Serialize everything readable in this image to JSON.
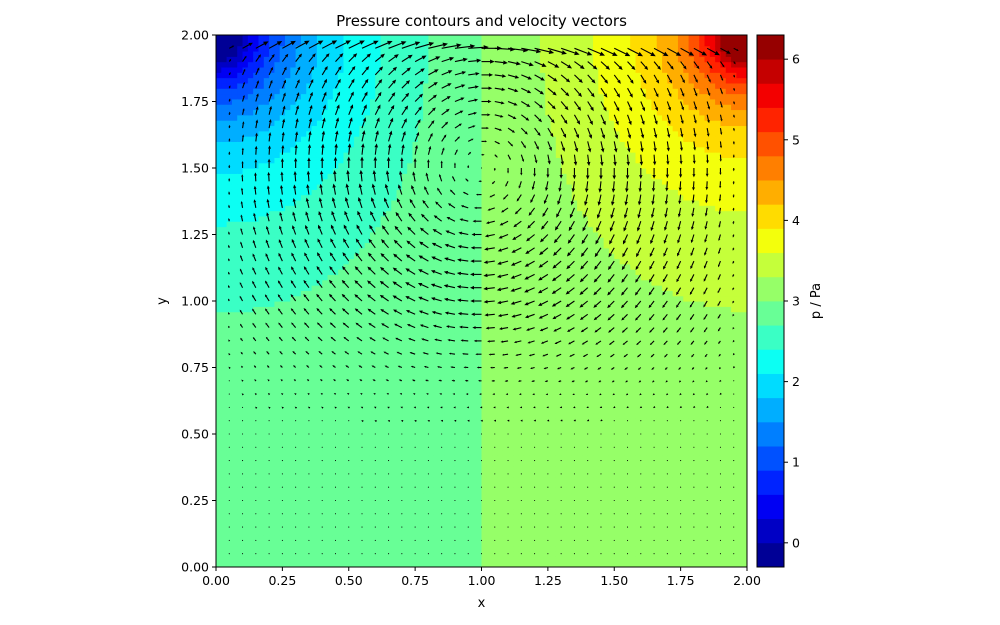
{
  "chart_data": {
    "type": "heatmap",
    "subtype": "filled contour with quiver (velocity vectors)",
    "title": "Pressure contours and velocity vectors",
    "xlabel": "x",
    "ylabel": "y",
    "xlim": [
      0.0,
      2.0
    ],
    "ylim": [
      0.0,
      2.0
    ],
    "x_ticks": [
      "0.00",
      "0.25",
      "0.50",
      "0.75",
      "1.00",
      "1.25",
      "1.50",
      "1.75",
      "2.00"
    ],
    "y_ticks": [
      "0.00",
      "0.25",
      "0.50",
      "0.75",
      "1.00",
      "1.25",
      "1.50",
      "1.75",
      "2.00"
    ],
    "grid": false,
    "colormap": "jet",
    "colorbar": {
      "label": "p / Pa",
      "range": [
        -0.3,
        6.3
      ],
      "ticks": [
        "0",
        "1",
        "2",
        "3",
        "4",
        "5",
        "6"
      ],
      "levels": 22,
      "placement": "right"
    },
    "pressure_field": {
      "units": "Pa",
      "background_value": 3.0,
      "features": [
        {
          "location": "top-left corner",
          "x": 0.0,
          "y": 2.0,
          "peak_value": -0.3,
          "description": "low-pressure region"
        },
        {
          "location": "top-right corner",
          "x": 2.0,
          "y": 2.0,
          "peak_value": 6.3,
          "description": "high-pressure region"
        }
      ],
      "contour_samples": [
        {
          "x": 0.0,
          "y": 0.79,
          "p": 2.9
        },
        {
          "x": 0.0,
          "y": 1.25,
          "p": 2.6
        },
        {
          "x": 0.7,
          "y": 2.0,
          "p": 2.6
        },
        {
          "x": 0.95,
          "y": 2.0,
          "p": 2.9
        },
        {
          "x": 2.0,
          "y": 0.7,
          "p": 3.2
        },
        {
          "x": 1.25,
          "y": 2.0,
          "p": 3.2
        }
      ]
    },
    "velocity_field": {
      "description": "lid-driven cavity: strong rightward flow along the top lid, single clockwise recirculation vortex, near-zero velocity in the lower half",
      "lid_velocity": 1.0,
      "lid_direction": "right",
      "vortex_rotation": "clockwise",
      "vortex_center": [
        1.0,
        1.5
      ],
      "grid_spacing": 0.05
    },
    "colors": {
      "jet_stops": [
        "#00007f",
        "#0000ff",
        "#007fff",
        "#00ffff",
        "#7fff7f",
        "#ffff00",
        "#ff7f00",
        "#ff0000",
        "#7f0000"
      ],
      "arrow": "#000000",
      "axes": "#000000"
    }
  }
}
